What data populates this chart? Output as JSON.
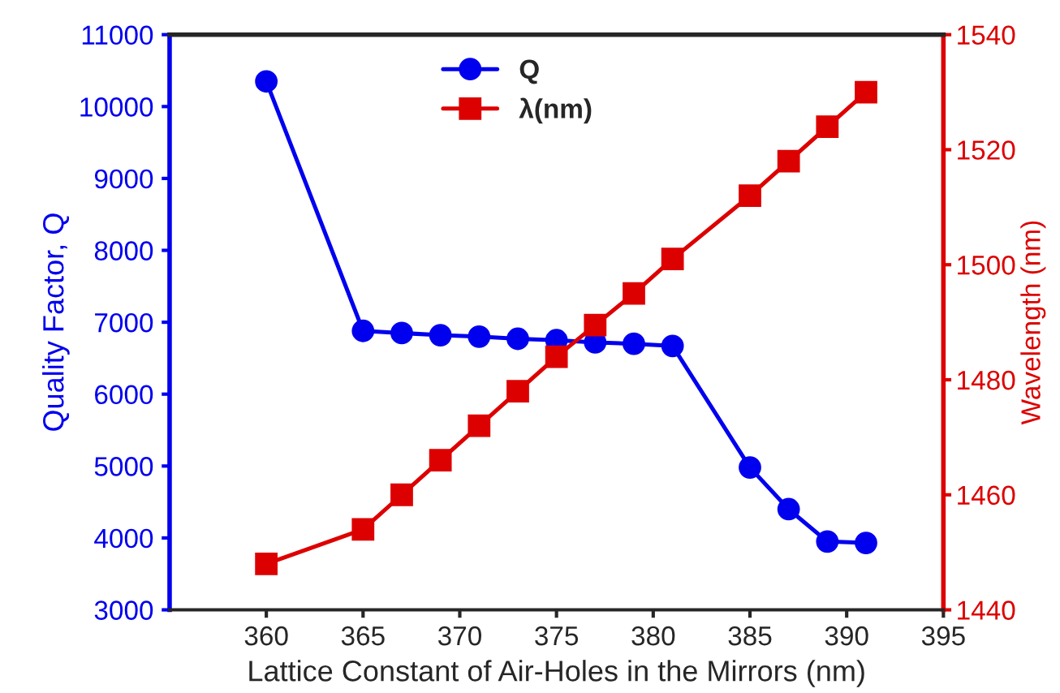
{
  "chart_data": {
    "type": "line",
    "xlabel": "Lattice Constant of Air-Holes in the Mirrors (nm)",
    "ylabel": "Quality Factor, Q",
    "y2label": "Wavelength (nm)",
    "x": [
      360,
      365,
      367,
      369,
      371,
      373,
      375,
      377,
      379,
      381,
      385,
      387,
      389,
      391
    ],
    "series": [
      {
        "name": "Q",
        "color": "#0000ee",
        "marker": "circle",
        "values": [
          10350,
          6880,
          6850,
          6820,
          6800,
          6770,
          6750,
          6720,
          6700,
          6670,
          4980,
          4400,
          3950,
          3930
        ]
      },
      {
        "name": "λ(nm)",
        "color": "#dd0000",
        "marker": "square",
        "axis": "y2",
        "values": [
          1448,
          1454,
          1460,
          1466,
          1472,
          1478,
          1484,
          1489.5,
          1495,
          1501,
          1512,
          1518,
          1524,
          1530
        ]
      }
    ],
    "xlim": [
      355,
      395
    ],
    "xticks": [
      360,
      365,
      370,
      375,
      380,
      385,
      390,
      395
    ],
    "ylim": [
      3000,
      11000
    ],
    "yticks": [
      3000,
      4000,
      5000,
      6000,
      7000,
      8000,
      9000,
      10000,
      11000
    ],
    "y2lim": [
      1440,
      1540
    ],
    "y2ticks": [
      1440,
      1460,
      1480,
      1500,
      1520,
      1540
    ],
    "grid": false,
    "legend": "top"
  }
}
